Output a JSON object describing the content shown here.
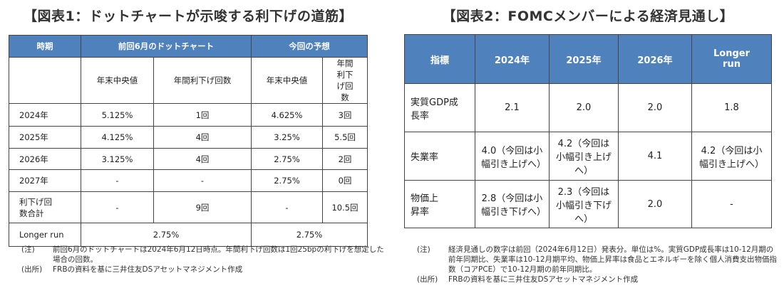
{
  "left": {
    "title": "【図表1：ドットチャートが示唆する利下げの道筋】",
    "headers": [
      "時期",
      "前回6月のドットチャート",
      "今回の予想"
    ],
    "subheaders": [
      "年末中央値",
      "年間利下げ回数",
      "年末中央値",
      "年間利下げ回数"
    ],
    "rows": [
      [
        "2024年",
        "5.125%",
        "1回",
        "4.625%",
        "3回"
      ],
      [
        "2025年",
        "4.125%",
        "4回",
        "3.25%",
        "5.5回"
      ],
      [
        "2026年",
        "3.125%",
        "4回",
        "2.75%",
        "2回"
      ],
      [
        "2027年",
        "-",
        "-",
        "2.75%",
        "0回"
      ],
      [
        "利下げ回数合計",
        "-",
        "9回",
        "-",
        "10.5回"
      ]
    ],
    "longer": [
      "Longer run",
      "2.75%",
      "2.75%"
    ],
    "note_label": "(注)",
    "note": "前回6月のドットチャートは2024年6月12日時点。年間利下げ回数は1回25bpの利下げを想定した場合の回数。",
    "source_label": "(出所)",
    "source": "FRBの資料を基に三井住友DSアセットマネジメント作成"
  },
  "right": {
    "title": "【図表2：FOMCメンバーによる経済見通し】",
    "headers": [
      "指標",
      "2024年",
      "2025年",
      "2026年",
      "Longer run"
    ],
    "rows": [
      [
        "実質GDP成長率",
        "2.1",
        "2.0",
        "2.0",
        "1.8"
      ],
      [
        "失業率",
        "4.0（今回は小幅引き上げへ）",
        "4.2（今回は小幅引き上げへ）",
        "4.1",
        "4.2（今回は小幅引き上げへ）"
      ],
      [
        "物価上昇率",
        "2.8（今回は小幅引き下げへ）",
        "2.3（今回は小幅引き下げへ）",
        "2.0",
        "-"
      ]
    ],
    "note_label": "(注)",
    "note": "経済見通しの数字は前回（2024年6月12日）発表分。単位は%。実質GDP成長率は10-12月期の前年同期比、失業率は10-12月期平均、物価上昇率は食品とエネルギーを除く個人消費支出物価指数（コアPCE）で10-12月期の前年同期比。",
    "source_label": "(出所)",
    "source": "FRBの資料を基に三井住友DSアセットマネジメント作成"
  },
  "colors": {
    "header": "#4f81bd"
  }
}
